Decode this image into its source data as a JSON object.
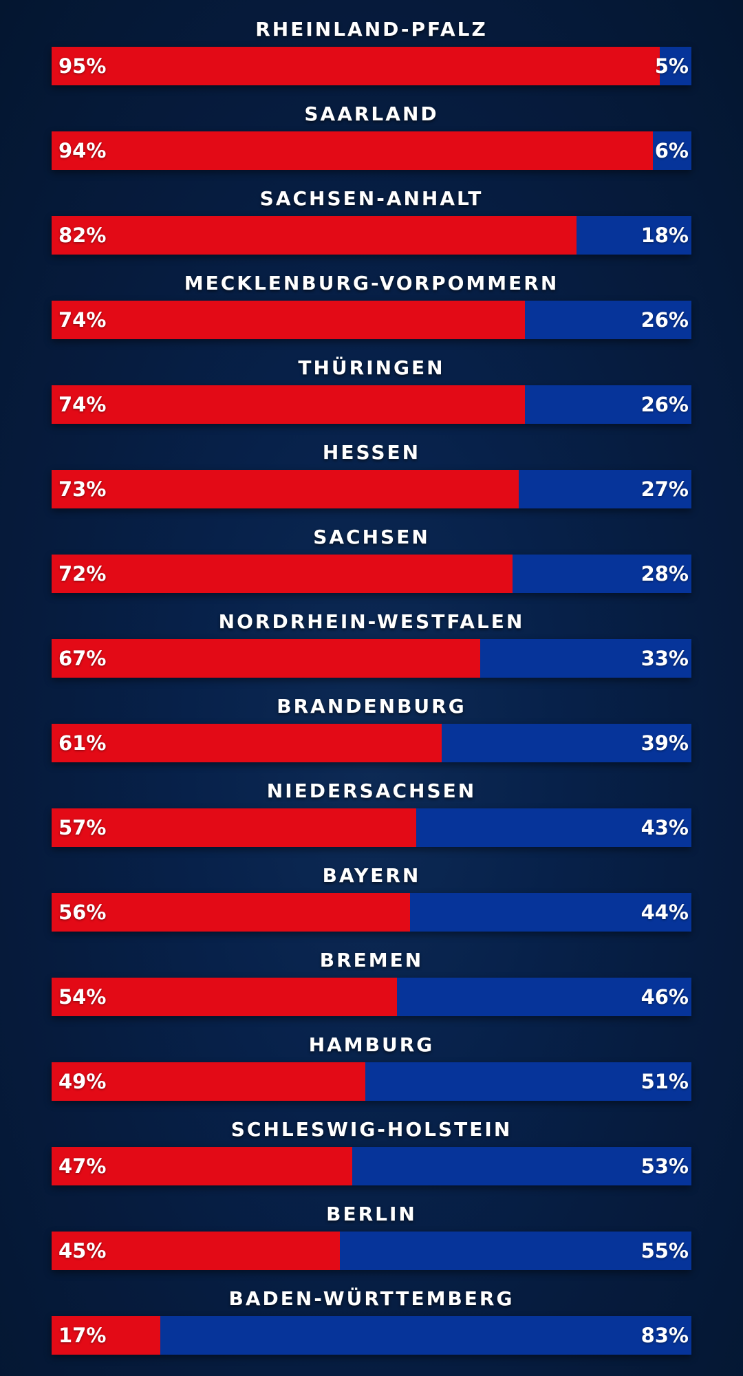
{
  "colors": {
    "left": "#e30a16",
    "right": "#06349a",
    "background": "#07214a"
  },
  "chart_data": {
    "type": "bar",
    "orientation": "horizontal",
    "stacked": true,
    "title": "",
    "categories": [
      "RHEINLAND-PFALZ",
      "SAARLAND",
      "SACHSEN-ANHALT",
      "MECKLENBURG-VORPOMMERN",
      "THÜRINGEN",
      "HESSEN",
      "SACHSEN",
      "NORDRHEIN-WESTFALEN",
      "BRANDENBURG",
      "NIEDERSACHSEN",
      "BAYERN",
      "BREMEN",
      "HAMBURG",
      "SCHLESWIG-HOLSTEIN",
      "BERLIN",
      "BADEN-WÜRTTEMBERG"
    ],
    "series": [
      {
        "values": [
          95,
          94,
          82,
          74,
          74,
          73,
          72,
          67,
          61,
          57,
          56,
          54,
          49,
          47,
          45,
          17
        ]
      },
      {
        "values": [
          5,
          6,
          18,
          26,
          26,
          27,
          28,
          33,
          39,
          43,
          44,
          46,
          51,
          53,
          55,
          83
        ]
      }
    ],
    "value_suffix": "%",
    "xlim": [
      0,
      100
    ]
  }
}
